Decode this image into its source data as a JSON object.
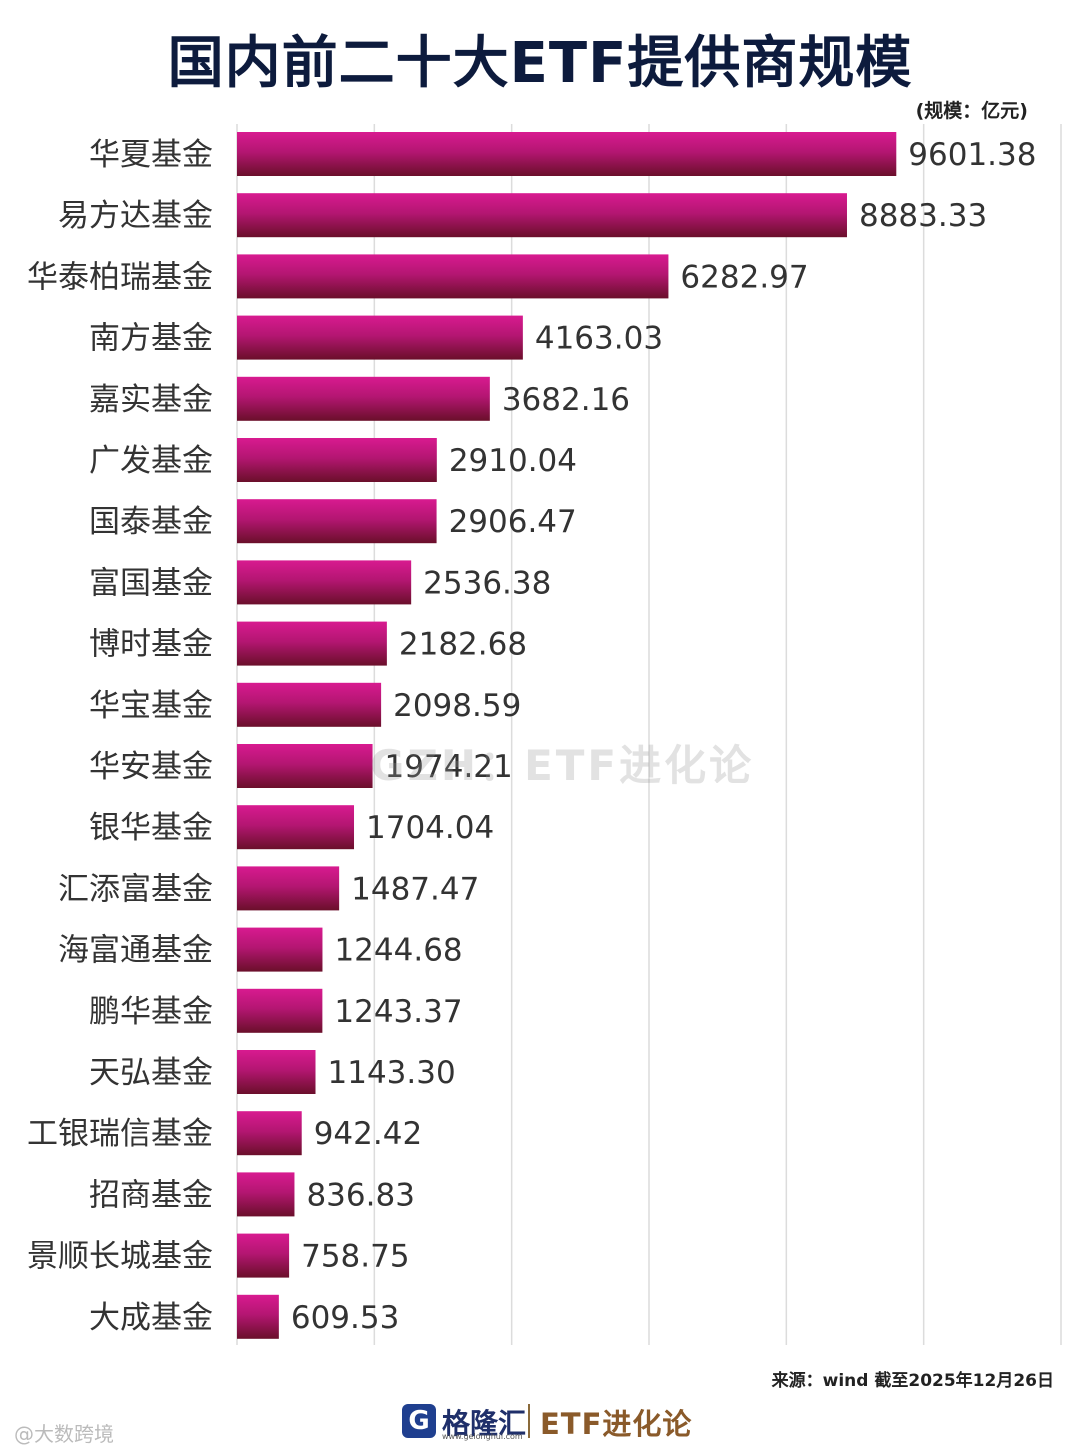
{
  "title": "国内前二十大ETF提供商规模",
  "unit_note": "(规模：亿元)",
  "watermark": "GZH：ETF进化论",
  "source_note": "来源：wind  截至2025年12月26日",
  "footer": {
    "logo_letter": "G",
    "brand_a": "格隆汇",
    "brand_a_url": "www.gelonghui.com",
    "brand_b": "ETF进化论"
  },
  "corner_mark": "@大数跨境",
  "colors": {
    "bar_top": "#d81a90",
    "bar_bottom": "#6a0f2a",
    "title": "#0d1b3d"
  },
  "chart_data": {
    "type": "bar",
    "orientation": "horizontal",
    "categories": [
      "华夏基金",
      "易方达基金",
      "华泰柏瑞基金",
      "南方基金",
      "嘉实基金",
      "广发基金",
      "国泰基金",
      "富国基金",
      "博时基金",
      "华宝基金",
      "华安基金",
      "银华基金",
      "汇添富基金",
      "海富通基金",
      "鹏华基金",
      "天弘基金",
      "工银瑞信基金",
      "招商基金",
      "景顺长城基金",
      "大成基金"
    ],
    "values": [
      9601.38,
      8883.33,
      6282.97,
      4163.03,
      3682.16,
      2910.04,
      2906.47,
      2536.38,
      2182.68,
      2098.59,
      1974.21,
      1704.04,
      1487.47,
      1244.68,
      1243.37,
      1143.3,
      942.42,
      836.83,
      758.75,
      609.53
    ],
    "value_labels": [
      "9601.38",
      "8883.33",
      "6282.97",
      "4163.03",
      "3682.16",
      "2910.04",
      "2906.47",
      "2536.38",
      "2182.68",
      "2098.59",
      "1974.21",
      "1704.04",
      "1487.47",
      "1244.68",
      "1243.37",
      "1143.30",
      "942.42",
      "836.83",
      "758.75",
      "609.53"
    ],
    "xlim": [
      0,
      12000
    ],
    "grid_interval": 2000,
    "grid": true,
    "title": "国内前二十大ETF提供商规模",
    "ylabel": "",
    "xlabel": ""
  }
}
